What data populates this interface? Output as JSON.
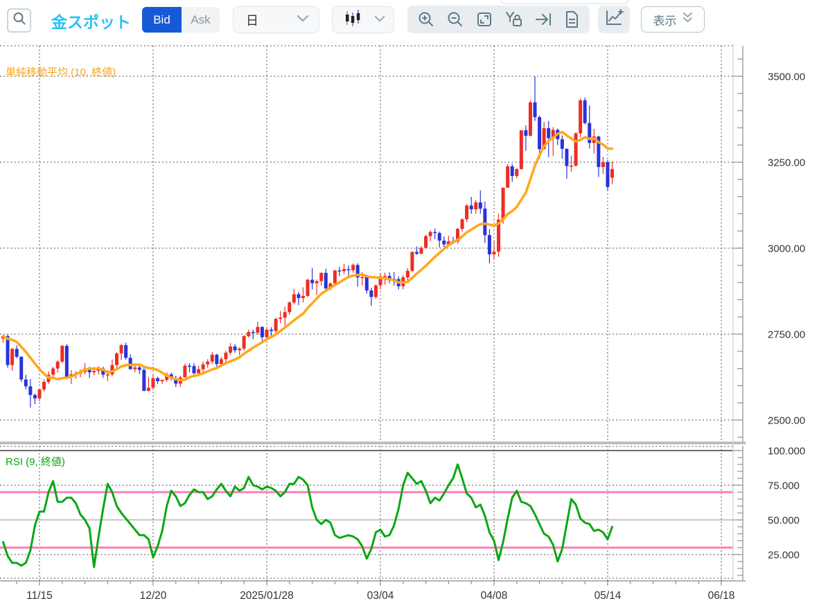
{
  "toolbar": {
    "title": "金スポット",
    "bid_label": "Bid",
    "ask_label": "Ask",
    "timeframe_value": "日",
    "display_label": "表示",
    "icons": [
      "search-icon",
      "chevron-down-icon",
      "candlestick-type-icon",
      "zoom-in-icon",
      "zoom-out-icon",
      "fit-screen-icon",
      "y-axis-lock-icon",
      "go-to-latest-icon",
      "document-icon",
      "add-indicator-icon",
      "double-chevron-down-icon"
    ]
  },
  "colors": {
    "title_cyan": "#2bc1f2",
    "bid_blue": "#1659d6",
    "candle_up_red": "#ee2d24",
    "candle_down_blue": "#2734d9",
    "sma_orange": "#ffa81e",
    "rsi_green": "#0ca613",
    "band_pink": "#fb7fb8",
    "grid_dash": "#4d4d4d",
    "axis_text": "#333333",
    "icon_gray": "#5d7a87"
  },
  "chart_data": {
    "type": "candlestick",
    "price_panel": {
      "sma_label": "単純移動平均 (10, 終値)",
      "ylim": [
        2437,
        3590
      ],
      "yticks": [
        {
          "value": 3500,
          "label": "3500.00"
        },
        {
          "value": 3250,
          "label": "3250.00"
        },
        {
          "value": 3000,
          "label": "3000.00"
        },
        {
          "value": 2750,
          "label": "2750.00"
        },
        {
          "value": 2500,
          "label": "2500.00"
        }
      ],
      "sma_period": 10,
      "sma_pre_closes": [
        2742,
        2736,
        2748,
        2756,
        2749,
        2740,
        2734,
        2752,
        2744
      ],
      "candles": [
        [
          2737,
          2745,
          2725,
          2744
        ],
        [
          2744,
          2749,
          2652,
          2660
        ],
        [
          2660,
          2710,
          2643,
          2707
        ],
        [
          2707,
          2717,
          2680,
          2684
        ],
        [
          2684,
          2686,
          2611,
          2618
        ],
        [
          2618,
          2632,
          2589,
          2598
        ],
        [
          2598,
          2619,
          2536,
          2573
        ],
        [
          2573,
          2577,
          2546,
          2563
        ],
        [
          2563,
          2592,
          2554,
          2589
        ],
        [
          2589,
          2618,
          2583,
          2611
        ],
        [
          2611,
          2641,
          2605,
          2632
        ],
        [
          2632,
          2655,
          2620,
          2650
        ],
        [
          2650,
          2674,
          2638,
          2670
        ],
        [
          2670,
          2718,
          2665,
          2716
        ],
        [
          2716,
          2721,
          2618,
          2626
        ],
        [
          2626,
          2645,
          2605,
          2633
        ],
        [
          2633,
          2642,
          2620,
          2636
        ],
        [
          2636,
          2647,
          2625,
          2640
        ],
        [
          2640,
          2666,
          2633,
          2650
        ],
        [
          2650,
          2655,
          2622,
          2639
        ],
        [
          2639,
          2649,
          2630,
          2643
        ],
        [
          2643,
          2657,
          2632,
          2650
        ],
        [
          2650,
          2655,
          2623,
          2632
        ],
        [
          2632,
          2645,
          2613,
          2633
        ],
        [
          2633,
          2676,
          2627,
          2660
        ],
        [
          2660,
          2697,
          2652,
          2694
        ],
        [
          2694,
          2721,
          2675,
          2718
        ],
        [
          2718,
          2725,
          2676,
          2681
        ],
        [
          2681,
          2691,
          2647,
          2648
        ],
        [
          2648,
          2664,
          2639,
          2653
        ],
        [
          2653,
          2661,
          2633,
          2646
        ],
        [
          2646,
          2652,
          2584,
          2585
        ],
        [
          2585,
          2626,
          2583,
          2594
        ],
        [
          2594,
          2631,
          2588,
          2622
        ],
        [
          2622,
          2626,
          2605,
          2613
        ],
        [
          2613,
          2618,
          2605,
          2617
        ],
        [
          2617,
          2639,
          2611,
          2633
        ],
        [
          2633,
          2638,
          2615,
          2621
        ],
        [
          2621,
          2629,
          2596,
          2606
        ],
        [
          2606,
          2629,
          2596,
          2624
        ],
        [
          2624,
          2664,
          2624,
          2658
        ],
        [
          2658,
          2665,
          2639,
          2657
        ],
        [
          2657,
          2665,
          2633,
          2636
        ],
        [
          2636,
          2658,
          2633,
          2648
        ],
        [
          2648,
          2670,
          2639,
          2662
        ],
        [
          2662,
          2677,
          2652,
          2670
        ],
        [
          2670,
          2698,
          2663,
          2690
        ],
        [
          2690,
          2693,
          2656,
          2663
        ],
        [
          2663,
          2684,
          2656,
          2677
        ],
        [
          2677,
          2702,
          2669,
          2696
        ],
        [
          2696,
          2724,
          2690,
          2714
        ],
        [
          2714,
          2721,
          2696,
          2703
        ],
        [
          2703,
          2712,
          2689,
          2708
        ],
        [
          2708,
          2747,
          2702,
          2744
        ],
        [
          2744,
          2763,
          2740,
          2756
        ],
        [
          2756,
          2763,
          2735,
          2754
        ],
        [
          2754,
          2786,
          2748,
          2771
        ],
        [
          2771,
          2772,
          2730,
          2741
        ],
        [
          2741,
          2768,
          2735,
          2763
        ],
        [
          2763,
          2770,
          2744,
          2759
        ],
        [
          2759,
          2798,
          2754,
          2794
        ],
        [
          2794,
          2817,
          2782,
          2798
        ],
        [
          2798,
          2830,
          2772,
          2814
        ],
        [
          2814,
          2845,
          2806,
          2842
        ],
        [
          2842,
          2882,
          2836,
          2866
        ],
        [
          2866,
          2873,
          2834,
          2855
        ],
        [
          2855,
          2886,
          2842,
          2861
        ],
        [
          2861,
          2911,
          2858,
          2908
        ],
        [
          2908,
          2942,
          2880,
          2898
        ],
        [
          2898,
          2909,
          2864,
          2904
        ],
        [
          2904,
          2930,
          2891,
          2928
        ],
        [
          2928,
          2940,
          2877,
          2883
        ],
        [
          2883,
          2901,
          2878,
          2897
        ],
        [
          2897,
          2937,
          2890,
          2935
        ],
        [
          2935,
          2946,
          2919,
          2933
        ],
        [
          2933,
          2954,
          2924,
          2939
        ],
        [
          2939,
          2950,
          2916,
          2936
        ],
        [
          2936,
          2956,
          2928,
          2951
        ],
        [
          2951,
          2956,
          2888,
          2915
        ],
        [
          2915,
          2930,
          2892,
          2916
        ],
        [
          2916,
          2923,
          2868,
          2877
        ],
        [
          2877,
          2885,
          2832,
          2858
        ],
        [
          2858,
          2894,
          2853,
          2892
        ],
        [
          2892,
          2927,
          2880,
          2918
        ],
        [
          2918,
          2929,
          2894,
          2919
        ],
        [
          2919,
          2930,
          2898,
          2911
        ],
        [
          2911,
          2931,
          2891,
          2910
        ],
        [
          2910,
          2918,
          2880,
          2889
        ],
        [
          2889,
          2922,
          2880,
          2915
        ],
        [
          2915,
          2942,
          2903,
          2934
        ],
        [
          2934,
          2990,
          2930,
          2989
        ],
        [
          2989,
          3005,
          2980,
          2984
        ],
        [
          2984,
          3006,
          2982,
          3001
        ],
        [
          3001,
          3039,
          2999,
          3035
        ],
        [
          3035,
          3052,
          3021,
          3047
        ],
        [
          3047,
          3057,
          3026,
          3044
        ],
        [
          3044,
          3048,
          3002,
          3022
        ],
        [
          3022,
          3034,
          3000,
          3011
        ],
        [
          3011,
          3036,
          3006,
          3020
        ],
        [
          3020,
          3033,
          3012,
          3019
        ],
        [
          3019,
          3059,
          3013,
          3056
        ],
        [
          3056,
          3086,
          3048,
          3084
        ],
        [
          3084,
          3128,
          3076,
          3124
        ],
        [
          3124,
          3149,
          3100,
          3113
        ],
        [
          3113,
          3140,
          3100,
          3133
        ],
        [
          3133,
          3168,
          3100,
          3115
        ],
        [
          3115,
          3136,
          3015,
          3038
        ],
        [
          3038,
          3055,
          2956,
          2982
        ],
        [
          2982,
          3022,
          2970,
          2990
        ],
        [
          2990,
          3100,
          2975,
          3083
        ],
        [
          3083,
          3176,
          3071,
          3176
        ],
        [
          3176,
          3245,
          3176,
          3238
        ],
        [
          3238,
          3245,
          3193,
          3210
        ],
        [
          3210,
          3233,
          3203,
          3230
        ],
        [
          3230,
          3343,
          3229,
          3343
        ],
        [
          3343,
          3357,
          3283,
          3327
        ],
        [
          3327,
          3430,
          3325,
          3424
        ],
        [
          3424,
          3500,
          3370,
          3381
        ],
        [
          3381,
          3386,
          3260,
          3288
        ],
        [
          3288,
          3367,
          3287,
          3349
        ],
        [
          3349,
          3370,
          3265,
          3320
        ],
        [
          3320,
          3352,
          3268,
          3344
        ],
        [
          3344,
          3348,
          3300,
          3317
        ],
        [
          3317,
          3328,
          3260,
          3289
        ],
        [
          3289,
          3290,
          3202,
          3239
        ],
        [
          3239,
          3269,
          3222,
          3240
        ],
        [
          3240,
          3337,
          3237,
          3334
        ],
        [
          3334,
          3435,
          3322,
          3430
        ],
        [
          3430,
          3438,
          3360,
          3364
        ],
        [
          3364,
          3415,
          3290,
          3306
        ],
        [
          3306,
          3347,
          3275,
          3325
        ],
        [
          3325,
          3326,
          3207,
          3236
        ],
        [
          3236,
          3266,
          3216,
          3250
        ],
        [
          3250,
          3257,
          3168,
          3178
        ],
        [
          3205,
          3252,
          3186,
          3230
        ]
      ]
    },
    "rsi_panel": {
      "label": "RSI (9, 終値)",
      "ylim": [
        6,
        103.5
      ],
      "yticks": [
        {
          "value": 100,
          "label": "100.000"
        },
        {
          "value": 75,
          "label": "75.000"
        },
        {
          "value": 50,
          "label": "50.000"
        },
        {
          "value": 25,
          "label": "25.000"
        }
      ],
      "band_levels": [
        70,
        30
      ],
      "values": [
        34,
        24,
        19,
        19,
        17,
        19,
        28,
        46,
        56,
        56,
        70,
        78,
        63,
        63,
        66,
        66,
        62,
        54,
        50,
        44,
        16,
        38,
        58,
        76,
        70,
        60,
        55,
        51,
        47,
        43,
        39,
        39,
        36,
        23,
        31,
        42,
        60,
        71,
        67,
        60,
        62,
        68,
        72,
        70,
        70,
        65,
        67,
        72,
        76,
        71,
        67,
        74,
        71,
        73,
        81,
        75,
        74,
        72,
        74,
        73,
        71,
        67,
        70,
        76,
        76,
        81,
        79,
        75,
        59,
        50,
        47,
        50,
        48,
        39,
        37,
        38,
        39,
        38,
        36,
        31,
        22,
        29,
        41,
        43,
        38,
        39,
        46,
        58,
        75,
        84,
        80,
        76,
        78,
        71,
        62,
        66,
        64,
        69,
        75,
        80,
        90,
        80,
        69,
        66,
        59,
        61,
        53,
        41,
        35,
        21,
        34,
        51,
        66,
        71,
        63,
        62,
        60,
        54,
        47,
        40,
        38,
        32,
        20,
        29,
        47,
        65,
        61,
        51,
        48,
        47,
        42,
        43,
        41,
        36,
        45
      ]
    },
    "x_axis": {
      "minor_tick_every": 5,
      "ticks": [
        {
          "index": 8,
          "label": "11/15"
        },
        {
          "index": 33,
          "label": "12/20"
        },
        {
          "index": 58,
          "label": "2025/01/28"
        },
        {
          "index": 83,
          "label": "03/04"
        },
        {
          "index": 108,
          "label": "04/08"
        },
        {
          "index": 133,
          "label": "05/14"
        },
        {
          "index": 158,
          "label": "06/18"
        }
      ]
    }
  }
}
